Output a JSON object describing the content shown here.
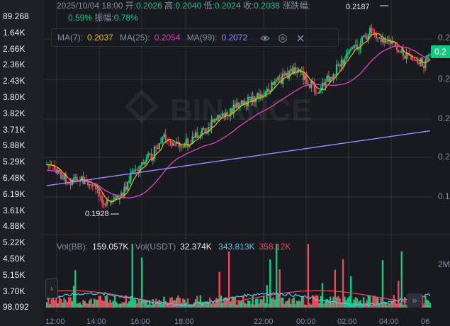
{
  "side_values": [
    "89.268",
    "1.64K",
    "2.66K",
    "2.36K",
    "2.43K",
    "3.80K",
    "3.82K",
    "3.71K",
    "5.88K",
    "5.29K",
    "6.48K",
    "6.19K",
    "3.61K",
    "4.88K",
    "5.22K",
    "4.50K",
    "5.15K",
    "3.70K",
    "98.092"
  ],
  "info": {
    "date": "2025/10/04 18:00",
    "open_label": "开:",
    "open": "0.2026",
    "high_label": "高:",
    "high": "0.2040",
    "low_label": "低:",
    "low": "0.2024",
    "close_label": "收:",
    "close": "0.2038",
    "change_label": "涨跌幅:",
    "change": "0.59%",
    "amp_label": "振幅:",
    "amp": "0.78%"
  },
  "ma": {
    "ma7_label": "MA(7):",
    "ma7": "0.2037",
    "ma25_label": "MA(25):",
    "ma25": "0.2054",
    "ma99_label": "MA(99):",
    "ma99": "0.2072",
    "ma7_color": "#f0b90b",
    "ma25_color": "#d53fb6",
    "ma99_color": "#9c88ff",
    "icons": [
      "eye-icon",
      "settings-icon",
      "close-icon"
    ]
  },
  "vol": {
    "bb_label": "Vol(BB):",
    "bb": "159.057K",
    "usdt_label": "Vol(USDT)",
    "usdt": "32.374K",
    "v1": "343.813K",
    "v2": "358.12K"
  },
  "annotations": {
    "high": "0.2187",
    "low": "0.1928"
  },
  "last_price": "0.2",
  "y_axis": [
    "0.2",
    "0.2",
    "0.2",
    "0.2",
    "0.1"
  ],
  "vol_axis": "2M",
  "x_axis": [
    "12:00",
    "14:00",
    "16:00",
    "18:00",
    "22:00",
    "00:00",
    "02:00",
    "04:00",
    "06"
  ],
  "watermark": "BINANCE",
  "colors": {
    "up": "#0ecb81",
    "down": "#f6465d",
    "bg": "#181a20"
  }
}
